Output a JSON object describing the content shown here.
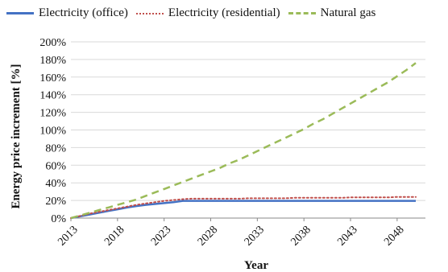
{
  "chart_data": {
    "type": "line",
    "title": "",
    "xlabel": "Year",
    "ylabel": "Energy price increment [%]",
    "x": [
      2013,
      2014,
      2015,
      2016,
      2017,
      2018,
      2019,
      2020,
      2021,
      2022,
      2023,
      2024,
      2025,
      2026,
      2027,
      2028,
      2029,
      2030,
      2031,
      2032,
      2033,
      2034,
      2035,
      2036,
      2037,
      2038,
      2039,
      2040,
      2041,
      2042,
      2043,
      2044,
      2045,
      2046,
      2047,
      2048,
      2049,
      2050
    ],
    "xticks": [
      "2013",
      "2018",
      "2023",
      "2028",
      "2033",
      "2038",
      "2043",
      "2048"
    ],
    "ylim": [
      0,
      200
    ],
    "yticks": [
      "0%",
      "20%",
      "40%",
      "60%",
      "80%",
      "100%",
      "120%",
      "140%",
      "160%",
      "180%",
      "200%"
    ],
    "grid": true,
    "legend_position": "top",
    "series": [
      {
        "name": "Electricity (office)",
        "color": "#4472c4",
        "style": "solid",
        "values": [
          0,
          2,
          4,
          6,
          8,
          10,
          12,
          13.5,
          15,
          16,
          17,
          18,
          19.5,
          19.5,
          19.5,
          19.5,
          19.5,
          19.5,
          19.5,
          19.5,
          19.5,
          19.5,
          19.5,
          19.5,
          19.5,
          19.5,
          19.5,
          19.5,
          19.5,
          19.5,
          19.5,
          19.5,
          19.5,
          19.5,
          19.5,
          19.5,
          19.5,
          19.5
        ]
      },
      {
        "name": "Electricity (residential)",
        "color": "#c0504d",
        "style": "dotted",
        "values": [
          0,
          2.5,
          5,
          7,
          9,
          11,
          13,
          15,
          16.5,
          18,
          19.5,
          20.5,
          21.5,
          22,
          22,
          22,
          22,
          22,
          22,
          22.5,
          22.5,
          22.5,
          22.5,
          22.5,
          23,
          23,
          23,
          23,
          23,
          23,
          23.5,
          23.5,
          23.5,
          23.5,
          23.5,
          24,
          24,
          24
        ]
      },
      {
        "name": "Natural gas",
        "color": "#9bbb59",
        "style": "dashed",
        "values": [
          0,
          3,
          6,
          9,
          12,
          15,
          18,
          21,
          25,
          29,
          33,
          37,
          41,
          45,
          49,
          53,
          57,
          62,
          66,
          71,
          76,
          81,
          86,
          91,
          96,
          101,
          107,
          112,
          118,
          124,
          130,
          136,
          142,
          148,
          154,
          161,
          168,
          176
        ]
      }
    ]
  }
}
